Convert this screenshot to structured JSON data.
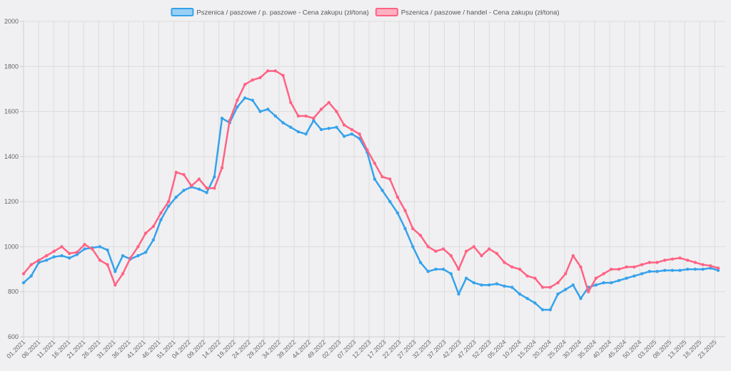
{
  "chart_data": {
    "type": "line",
    "title": "",
    "xlabel": "",
    "ylabel": "",
    "ylim": [
      600,
      2000
    ],
    "yticks": [
      600,
      800,
      1000,
      1200,
      1400,
      1600,
      1800,
      2000
    ],
    "xtick_labels": [
      "01.2021",
      "06.2021",
      "11.2021",
      "16.2021",
      "21.2021",
      "26.2021",
      "31.2021",
      "36.2021",
      "41.2021",
      "46.2021",
      "51.2021",
      "04.2022",
      "09.2022",
      "14.2022",
      "19.2022",
      "24.2022",
      "29.2022",
      "34.2022",
      "39.2022",
      "44.2022",
      "49.2022",
      "02.2023",
      "07.2023",
      "12.2023",
      "17.2023",
      "22.2023",
      "27.2023",
      "32.2023",
      "37.2023",
      "42.2023",
      "47.2023",
      "52.2023",
      "05.2024",
      "10.2024",
      "15.2024",
      "20.2024",
      "25.2024",
      "30.2024",
      "35.2024",
      "40.2024",
      "45.2024",
      "50.2024",
      "03.2025",
      "08.2025",
      "13.2025",
      "18.2025",
      "23.2025"
    ],
    "grid": true,
    "legend_position": "top-center",
    "series": [
      {
        "name": "Pszenica / paszowe / p. paszowe - Cena zakupu (zł/tona)",
        "color": "#36a2eb",
        "fill": "#9ad0f5",
        "values": [
          840,
          870,
          930,
          940,
          955,
          960,
          950,
          965,
          990,
          995,
          1000,
          985,
          890,
          960,
          945,
          960,
          975,
          1030,
          1120,
          1180,
          1220,
          1250,
          1265,
          1255,
          1240,
          1310,
          1570,
          1550,
          1620,
          1660,
          1650,
          1600,
          1610,
          1580,
          1550,
          1530,
          1510,
          1500,
          1560,
          1520,
          1525,
          1530,
          1490,
          1500,
          1480,
          1420,
          1300,
          1250,
          1200,
          1150,
          1080,
          1000,
          930,
          890,
          900,
          900,
          880,
          790,
          860,
          840,
          830,
          830,
          835,
          825,
          820,
          790,
          770,
          750,
          720,
          720,
          790,
          810,
          830,
          770,
          820,
          830,
          840,
          840,
          850,
          860,
          870,
          880,
          890,
          890,
          895,
          895,
          895,
          900,
          900,
          900,
          905,
          895
        ]
      },
      {
        "name": "Pszenica / paszowe / handel - Cena zakupu (zł/tona)",
        "color": "#ff6384",
        "fill": "#ffb1c1",
        "values": [
          880,
          920,
          940,
          960,
          980,
          1000,
          970,
          975,
          1010,
          990,
          940,
          920,
          830,
          880,
          950,
          1000,
          1060,
          1090,
          1150,
          1200,
          1330,
          1320,
          1270,
          1300,
          1260,
          1260,
          1350,
          1560,
          1650,
          1720,
          1740,
          1750,
          1780,
          1780,
          1760,
          1640,
          1580,
          1580,
          1570,
          1610,
          1640,
          1600,
          1540,
          1520,
          1500,
          1430,
          1370,
          1310,
          1300,
          1220,
          1160,
          1080,
          1050,
          1000,
          980,
          990,
          960,
          900,
          980,
          1000,
          960,
          990,
          970,
          930,
          910,
          900,
          870,
          860,
          820,
          820,
          840,
          880,
          960,
          910,
          800,
          860,
          880,
          900,
          900,
          910,
          910,
          920,
          930,
          930,
          940,
          945,
          950,
          940,
          930,
          920,
          915,
          905
        ]
      }
    ]
  }
}
